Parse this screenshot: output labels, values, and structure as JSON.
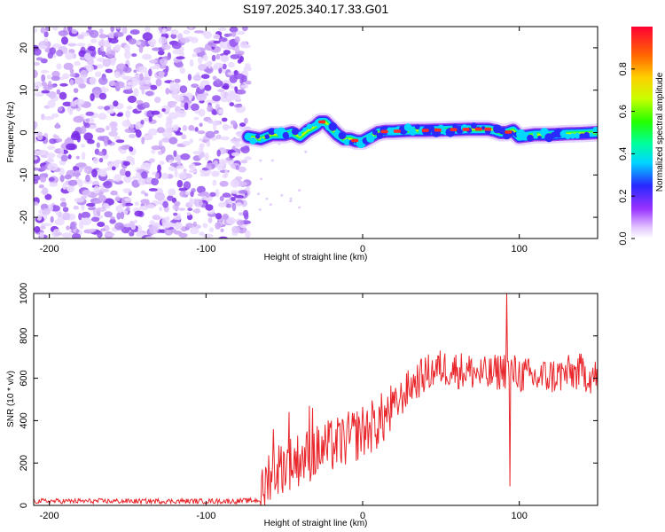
{
  "title": "S197.2025.340.17.33.G01",
  "chart_data": [
    {
      "type": "heatmap",
      "name": "spectrogram",
      "xlabel": "Height of straight line (km)",
      "ylabel": "Frequency (Hz)",
      "xlim": [
        -210,
        150
      ],
      "ylim": [
        -25,
        25
      ],
      "xticks": [
        -200,
        -100,
        0,
        100
      ],
      "yticks": [
        -20,
        -10,
        0,
        10,
        20
      ],
      "colorbar": {
        "label": "Normalized spectral amplitude",
        "range": [
          0,
          1
        ],
        "ticks": [
          0.0,
          0.2,
          0.4,
          0.6,
          0.8
        ]
      },
      "noise_region_x": [
        -210,
        -73
      ],
      "signal_ridge": {
        "x": [
          -73,
          -65,
          -58,
          -50,
          -45,
          -40,
          -35,
          -30,
          -27,
          -24,
          -20,
          -16,
          -12,
          -8,
          -4,
          0,
          5,
          10,
          15,
          20,
          30,
          40,
          50,
          60,
          70,
          80,
          84,
          88,
          92,
          96,
          100,
          110,
          120,
          130,
          140,
          150
        ],
        "y": [
          -1.0,
          -1.5,
          -0.5,
          -0.5,
          0.0,
          -1.0,
          0.5,
          1.5,
          2.5,
          2.5,
          1.0,
          -0.5,
          -1.5,
          -1.5,
          -2.0,
          -2.0,
          -1.0,
          0.0,
          0.3,
          0.3,
          0.5,
          0.5,
          0.6,
          0.7,
          0.8,
          0.8,
          0.5,
          0.0,
          0.0,
          0.5,
          -1.0,
          -0.5,
          -0.5,
          -0.3,
          -0.2,
          0.0
        ]
      }
    },
    {
      "type": "line",
      "name": "snr",
      "xlabel": "Height of straight line (km)",
      "ylabel": "SNR (10 * v/v)",
      "xlim": [
        -210,
        150
      ],
      "ylim": [
        0,
        1000
      ],
      "xticks": [
        -200,
        -100,
        0,
        100
      ],
      "yticks": [
        0,
        200,
        400,
        600,
        800,
        1000
      ],
      "color": "#e8262b",
      "series_trend": {
        "x": [
          -210,
          -80,
          -65,
          -60,
          -50,
          -40,
          -30,
          -20,
          -10,
          0,
          10,
          20,
          30,
          40,
          50,
          60,
          70,
          80,
          90,
          100,
          110,
          120,
          130,
          140,
          150
        ],
        "y": [
          20,
          20,
          25,
          150,
          190,
          220,
          250,
          280,
          310,
          350,
          390,
          460,
          560,
          620,
          650,
          640,
          630,
          610,
          640,
          620,
          600,
          610,
          620,
          630,
          600
        ]
      },
      "spikes": [
        {
          "x": -57,
          "y": 360
        },
        {
          "x": -47,
          "y": 440
        },
        {
          "x": -34,
          "y": 470
        },
        {
          "x": -32,
          "y": 460
        },
        {
          "x": 92,
          "y": 1000
        },
        {
          "x": 94,
          "y": 90
        }
      ]
    }
  ]
}
